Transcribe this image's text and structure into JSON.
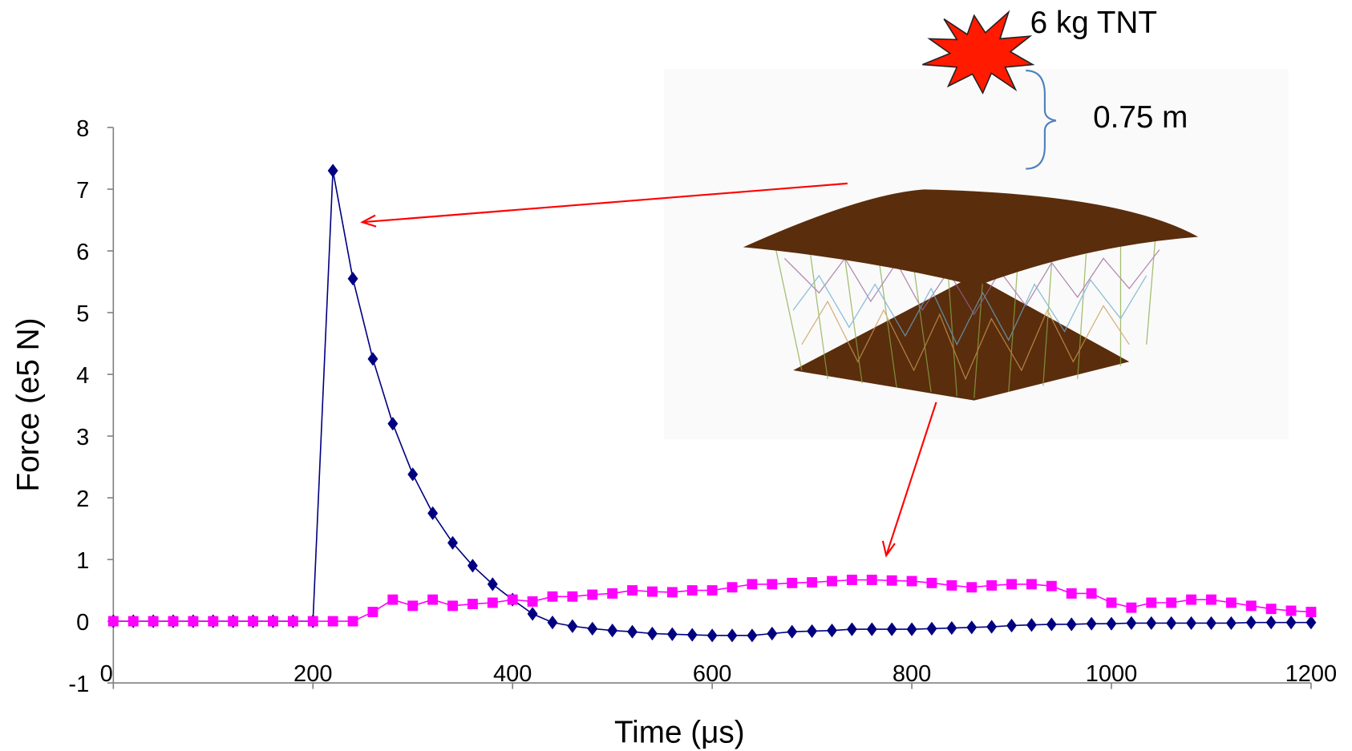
{
  "chart_data": {
    "type": "line",
    "x_label": "Time (μs)",
    "y_label": "Force (e5 N)",
    "annotations": [
      "6 kg TNT",
      "0.75 m"
    ],
    "x": [
      0,
      20,
      40,
      60,
      80,
      100,
      120,
      140,
      160,
      180,
      200,
      220,
      240,
      260,
      280,
      300,
      320,
      340,
      360,
      380,
      400,
      420,
      440,
      460,
      480,
      500,
      520,
      540,
      560,
      580,
      600,
      620,
      640,
      660,
      680,
      700,
      720,
      740,
      760,
      780,
      800,
      820,
      840,
      860,
      880,
      900,
      920,
      940,
      960,
      980,
      1000,
      1020,
      1040,
      1060,
      1080,
      1100,
      1120,
      1140,
      1160,
      1180,
      1200
    ],
    "series": [
      {
        "color": "#000080",
        "marker": "diamond",
        "values": [
          0,
          0,
          0,
          0,
          0,
          0,
          0,
          0,
          0,
          0,
          0,
          7.3,
          5.55,
          4.25,
          3.2,
          2.38,
          1.75,
          1.27,
          0.9,
          0.6,
          0.35,
          0.12,
          -0.02,
          -0.08,
          -0.12,
          -0.15,
          -0.17,
          -0.2,
          -0.21,
          -0.22,
          -0.23,
          -0.23,
          -0.23,
          -0.2,
          -0.17,
          -0.16,
          -0.15,
          -0.13,
          -0.13,
          -0.13,
          -0.13,
          -0.12,
          -0.11,
          -0.1,
          -0.09,
          -0.07,
          -0.06,
          -0.05,
          -0.05,
          -0.04,
          -0.04,
          -0.03,
          -0.03,
          -0.03,
          -0.03,
          -0.03,
          -0.03,
          -0.02,
          -0.02,
          -0.02,
          -0.02
        ]
      },
      {
        "color": "#ff00ff",
        "marker": "square",
        "values": [
          0,
          0,
          0,
          0,
          0,
          0,
          0,
          0,
          0,
          0,
          0,
          0,
          0,
          0.15,
          0.35,
          0.25,
          0.35,
          0.25,
          0.28,
          0.3,
          0.35,
          0.32,
          0.4,
          0.4,
          0.43,
          0.45,
          0.5,
          0.48,
          0.47,
          0.5,
          0.5,
          0.55,
          0.6,
          0.6,
          0.62,
          0.63,
          0.65,
          0.67,
          0.67,
          0.66,
          0.65,
          0.62,
          0.58,
          0.55,
          0.58,
          0.6,
          0.6,
          0.57,
          0.45,
          0.45,
          0.3,
          0.22,
          0.3,
          0.3,
          0.35,
          0.35,
          0.3,
          0.25,
          0.2,
          0.17,
          0.15
        ]
      }
    ],
    "xlim": [
      0,
      1200
    ],
    "xticks": [
      0,
      200,
      400,
      600,
      800,
      1000,
      1200
    ],
    "ylim": [
      -1,
      8
    ],
    "yticks": [
      -1,
      0,
      1,
      2,
      3,
      4,
      5,
      6,
      7,
      8
    ],
    "grid": false
  }
}
